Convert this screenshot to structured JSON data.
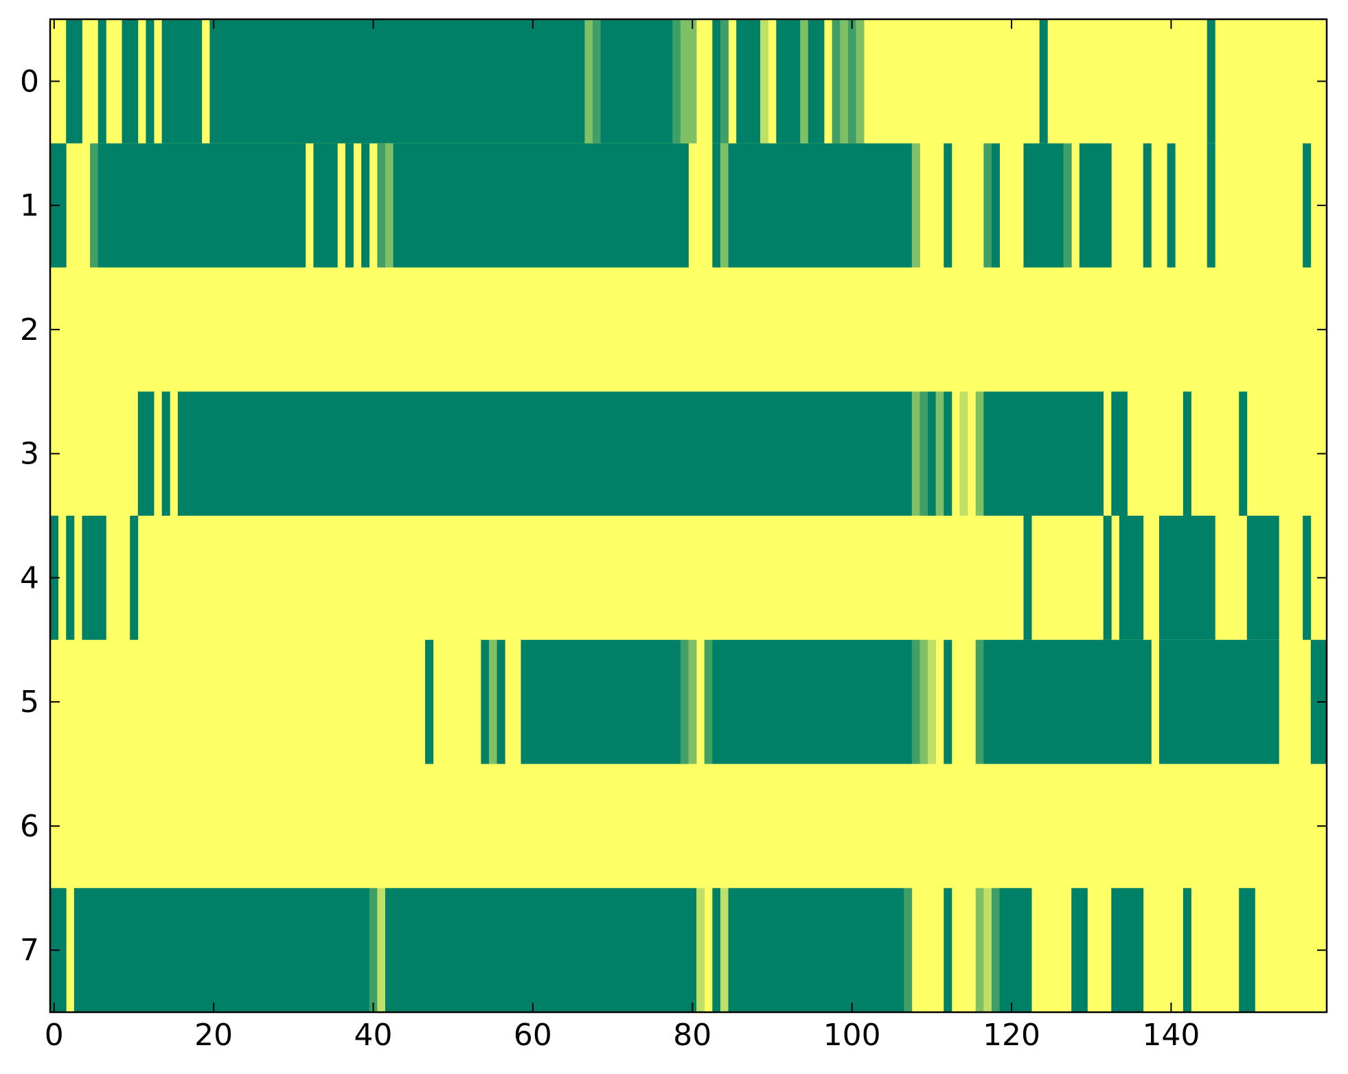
{
  "chart_data": {
    "type": "heatmap",
    "title": "",
    "xlabel": "",
    "ylabel": "",
    "n_cols": 160,
    "xlim": [
      -0.5,
      159.5
    ],
    "ylim": [
      7.5,
      -0.5
    ],
    "grid": false,
    "colormap": "summer",
    "colors": {
      "low": "#008066",
      "mid_low": "#3f9f66",
      "mid": "#7fbf66",
      "mid_high": "#bfdf66",
      "high": "#ffff66"
    },
    "xticks": [
      {
        "value": 0,
        "label": "0"
      },
      {
        "value": 20,
        "label": "20"
      },
      {
        "value": 40,
        "label": "40"
      },
      {
        "value": 60,
        "label": "60"
      },
      {
        "value": 80,
        "label": "80"
      },
      {
        "value": 100,
        "label": "100"
      },
      {
        "value": 120,
        "label": "120"
      },
      {
        "value": 140,
        "label": "140"
      }
    ],
    "yticks": [
      {
        "value": 0,
        "label": "0"
      },
      {
        "value": 1,
        "label": "1"
      },
      {
        "value": 2,
        "label": "2"
      },
      {
        "value": 3,
        "label": "3"
      },
      {
        "value": 4,
        "label": "4"
      },
      {
        "value": 5,
        "label": "5"
      },
      {
        "value": 6,
        "label": "6"
      },
      {
        "value": 7,
        "label": "7"
      }
    ],
    "default_value": 1,
    "rows": [
      {
        "row": 0,
        "segments": [
          [
            2,
            3,
            0
          ],
          [
            6,
            6,
            0
          ],
          [
            9,
            10,
            0
          ],
          [
            12,
            12,
            0
          ],
          [
            14,
            18,
            0
          ],
          [
            20,
            66,
            0
          ],
          [
            67,
            67,
            0.5
          ],
          [
            68,
            68,
            0.25
          ],
          [
            69,
            77,
            0
          ],
          [
            78,
            78,
            0.25
          ],
          [
            79,
            80,
            0.5
          ],
          [
            83,
            83,
            0
          ],
          [
            84,
            84,
            0.25
          ],
          [
            86,
            88,
            0
          ],
          [
            89,
            89,
            0.75
          ],
          [
            91,
            93,
            0
          ],
          [
            94,
            94,
            0.5
          ],
          [
            95,
            96,
            0
          ],
          [
            98,
            98,
            0.25
          ],
          [
            99,
            99,
            0.5
          ],
          [
            100,
            100,
            0.25
          ],
          [
            101,
            101,
            0.5
          ],
          [
            124,
            124,
            0
          ],
          [
            145,
            145,
            0
          ]
        ]
      },
      {
        "row": 1,
        "segments": [
          [
            0,
            1,
            0
          ],
          [
            5,
            5,
            0.25
          ],
          [
            6,
            31,
            0
          ],
          [
            33,
            35,
            0
          ],
          [
            37,
            37,
            0
          ],
          [
            39,
            39,
            0
          ],
          [
            41,
            41,
            0.25
          ],
          [
            42,
            42,
            0.5
          ],
          [
            43,
            79,
            0
          ],
          [
            83,
            83,
            0
          ],
          [
            84,
            84,
            0.5
          ],
          [
            85,
            107,
            0
          ],
          [
            108,
            108,
            0.5
          ],
          [
            112,
            112,
            0
          ],
          [
            117,
            117,
            0.25
          ],
          [
            118,
            118,
            0
          ],
          [
            122,
            126,
            0
          ],
          [
            127,
            127,
            0.25
          ],
          [
            129,
            132,
            0
          ],
          [
            137,
            137,
            0
          ],
          [
            140,
            140,
            0
          ],
          [
            145,
            145,
            0
          ],
          [
            157,
            157,
            0
          ]
        ]
      },
      {
        "row": 2,
        "segments": []
      },
      {
        "row": 3,
        "segments": [
          [
            11,
            12,
            0
          ],
          [
            14,
            14,
            0
          ],
          [
            16,
            107,
            0
          ],
          [
            108,
            108,
            0.5
          ],
          [
            109,
            109,
            0.25
          ],
          [
            110,
            110,
            0
          ],
          [
            111,
            111,
            0.5
          ],
          [
            112,
            112,
            0
          ],
          [
            114,
            114,
            0.75
          ],
          [
            116,
            116,
            0.5
          ],
          [
            117,
            131,
            0
          ],
          [
            133,
            134,
            0
          ],
          [
            142,
            142,
            0
          ],
          [
            149,
            149,
            0
          ]
        ]
      },
      {
        "row": 4,
        "segments": [
          [
            0,
            0,
            0
          ],
          [
            2,
            2,
            0
          ],
          [
            4,
            6,
            0
          ],
          [
            10,
            10,
            0
          ],
          [
            122,
            122,
            0
          ],
          [
            132,
            132,
            0
          ],
          [
            134,
            136,
            0
          ],
          [
            139,
            145,
            0
          ],
          [
            150,
            153,
            0
          ],
          [
            157,
            157,
            0
          ]
        ]
      },
      {
        "row": 5,
        "segments": [
          [
            47,
            47,
            0
          ],
          [
            54,
            54,
            0
          ],
          [
            55,
            55,
            0.5
          ],
          [
            56,
            56,
            0
          ],
          [
            59,
            60,
            0
          ],
          [
            61,
            78,
            0
          ],
          [
            79,
            79,
            0.25
          ],
          [
            80,
            80,
            0.5
          ],
          [
            82,
            82,
            0.25
          ],
          [
            83,
            107,
            0
          ],
          [
            108,
            108,
            0.25
          ],
          [
            109,
            109,
            0.5
          ],
          [
            110,
            110,
            0.75
          ],
          [
            112,
            112,
            0
          ],
          [
            116,
            116,
            0.25
          ],
          [
            117,
            137,
            0
          ],
          [
            139,
            153,
            0
          ],
          [
            158,
            159,
            0
          ]
        ]
      },
      {
        "row": 6,
        "segments": []
      },
      {
        "row": 7,
        "segments": [
          [
            0,
            1,
            0
          ],
          [
            3,
            39,
            0
          ],
          [
            40,
            40,
            0.25
          ],
          [
            41,
            41,
            0.75
          ],
          [
            42,
            80,
            0
          ],
          [
            81,
            81,
            0.75
          ],
          [
            83,
            83,
            0
          ],
          [
            84,
            84,
            0.75
          ],
          [
            85,
            106,
            0
          ],
          [
            107,
            107,
            0.25
          ],
          [
            112,
            112,
            0
          ],
          [
            116,
            116,
            0.5
          ],
          [
            117,
            117,
            0.75
          ],
          [
            118,
            118,
            0.25
          ],
          [
            119,
            122,
            0
          ],
          [
            128,
            129,
            0
          ],
          [
            133,
            136,
            0
          ],
          [
            142,
            142,
            0
          ],
          [
            149,
            150,
            0
          ]
        ]
      }
    ]
  }
}
